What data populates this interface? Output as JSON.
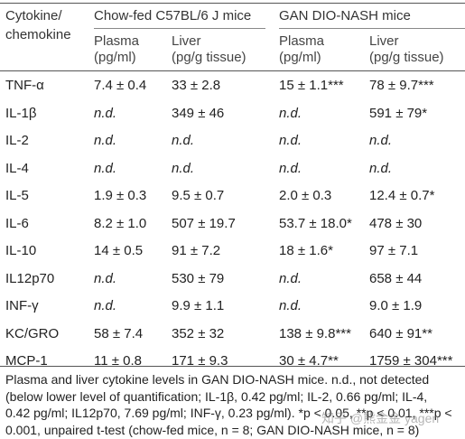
{
  "table": {
    "header": {
      "col0_line1": "Cytokine/",
      "col0_line2": "chemokine",
      "group1": "Chow-fed C57BL/6 J mice",
      "group2": "GAN DIO-NASH mice",
      "plasma": "Plasma",
      "plasma_unit": "(pg/ml)",
      "liver": "Liver",
      "liver_unit": "(pg/g tissue)"
    },
    "rows": [
      {
        "name": "TNF-α",
        "chow_plasma": "7.4 ± 0.4",
        "chow_liver": "33 ± 2.8",
        "nash_plasma": "15 ± 1.1***",
        "nash_liver": "78 ± 9.7***"
      },
      {
        "name": "IL-1β",
        "chow_plasma": "n.d.",
        "chow_liver": "349 ± 46",
        "nash_plasma": "n.d.",
        "nash_liver": "591 ± 79*"
      },
      {
        "name": "IL-2",
        "chow_plasma": "n.d.",
        "chow_liver": "n.d.",
        "nash_plasma": "n.d.",
        "nash_liver": "n.d."
      },
      {
        "name": "IL-4",
        "chow_plasma": "n.d.",
        "chow_liver": "n.d.",
        "nash_plasma": "n.d.",
        "nash_liver": "n.d."
      },
      {
        "name": "IL-5",
        "chow_plasma": "1.9 ± 0.3",
        "chow_liver": "9.5 ± 0.7",
        "nash_plasma": "2.0 ± 0.3",
        "nash_liver": "12.4 ± 0.7*"
      },
      {
        "name": "IL-6",
        "chow_plasma": "8.2 ± 1.0",
        "chow_liver": "507 ± 19.7",
        "nash_plasma": "53.7 ± 18.0*",
        "nash_liver": "478 ± 30"
      },
      {
        "name": "IL-10",
        "chow_plasma": "14 ± 0.5",
        "chow_liver": "91 ± 7.2",
        "nash_plasma": "18 ± 1.6*",
        "nash_liver": "97 ± 7.1"
      },
      {
        "name": "IL12p70",
        "chow_plasma": "n.d.",
        "chow_liver": "530 ± 79",
        "nash_plasma": "n.d.",
        "nash_liver": "658 ± 44"
      },
      {
        "name": "INF-γ",
        "chow_plasma": "n.d.",
        "chow_liver": "9.9 ± 1.1",
        "nash_plasma": "n.d.",
        "nash_liver": "9.0 ± 1.9"
      },
      {
        "name": "KC/GRO",
        "chow_plasma": "58 ± 7.4",
        "chow_liver": "352 ± 32",
        "nash_plasma": "138 ± 9.8***",
        "nash_liver": "640 ± 91**"
      },
      {
        "name": "MCP-1",
        "chow_plasma": "11 ± 0.8",
        "chow_liver": "171 ± 9.3",
        "nash_plasma": "30 ± 4.7**",
        "nash_liver": "1759 ± 304***"
      }
    ]
  },
  "caption": {
    "line1": "Plasma and liver cytokine levels in GAN DIO-NASH mice. n.d., not detected",
    "line2": "(below lower level of quantification; IL-1β, 0.42 pg/ml; IL-2, 0.66 pg/ml; IL-4,",
    "line3": "0.42 pg/ml; IL12p70, 7.69 pg/ml; INF-γ, 0.23 pg/ml). *p < 0.05, **p < 0.01, ***p <",
    "line4": "0.001, unpaired t-test (chow-fed mice, n = 8; GAN DIO-NASH mice, n = 8)"
  },
  "watermark": "知乎 @熊金金 yagen"
}
